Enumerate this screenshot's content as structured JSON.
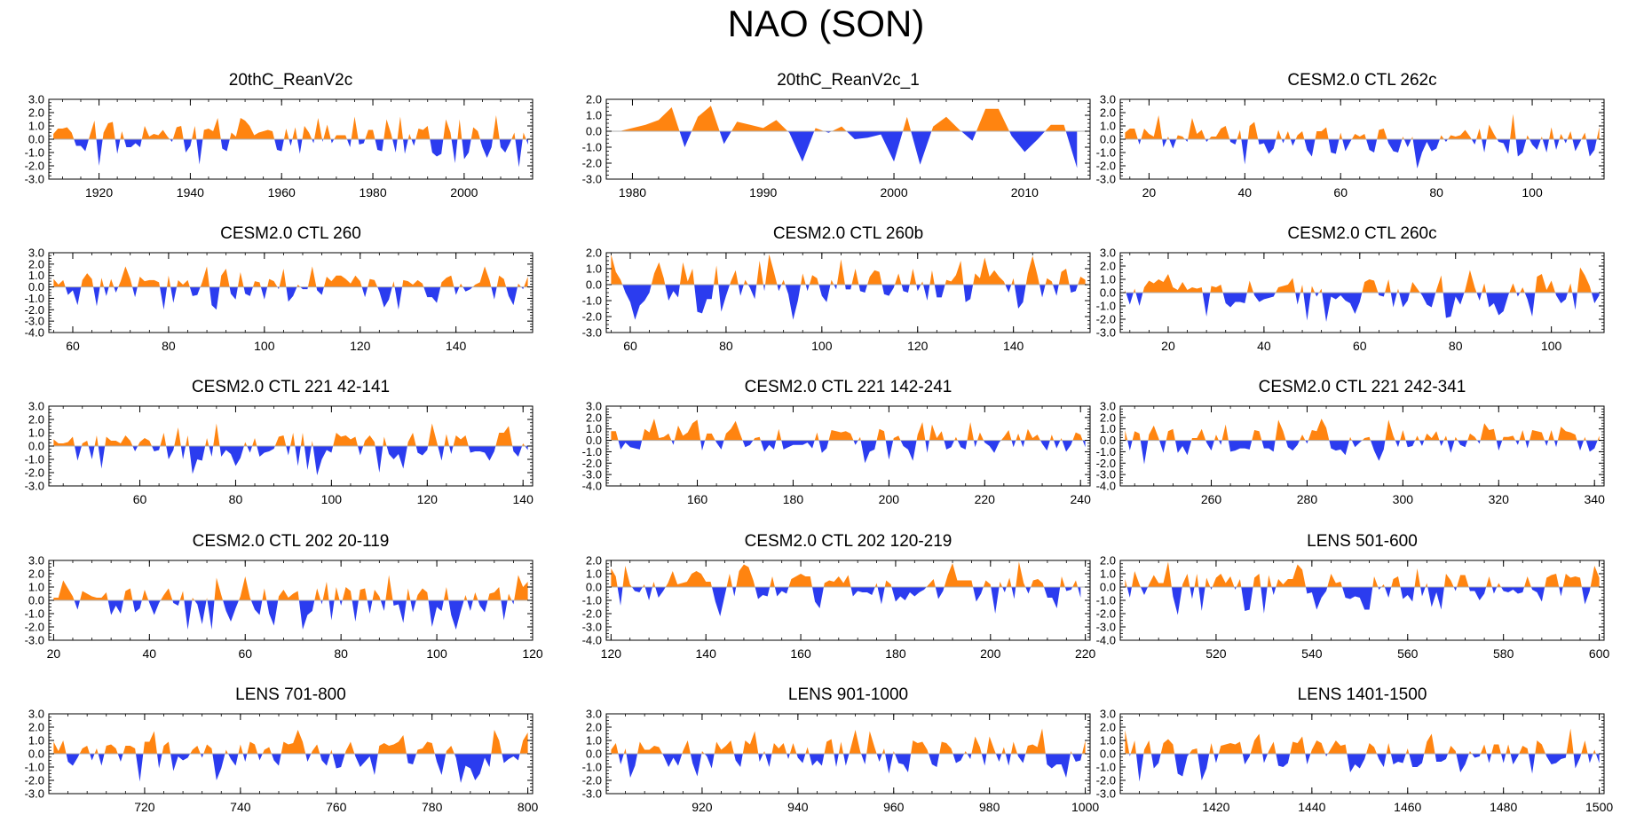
{
  "figure_title": "NAO (SON)",
  "colors": {
    "positive": "#ff8410",
    "negative": "#2b3cef",
    "axis": "#000000",
    "zero_line": "#b0b0b0"
  },
  "chart_data": [
    {
      "type": "area",
      "title": "20thC_ReanV2c",
      "x_start": 1910,
      "x_end": 2014,
      "xlim": [
        1909,
        2015
      ],
      "xticks": [
        1920,
        1940,
        1960,
        1980,
        2000
      ],
      "ylim": [
        -3.0,
        3.0
      ],
      "yticks": [
        -3.0,
        -2.0,
        -1.0,
        0.0,
        1.0,
        2.0,
        3.0
      ],
      "seed": 11
    },
    {
      "type": "area",
      "title": "20thC_ReanV2c_1",
      "xlim": [
        1978,
        2015
      ],
      "xticks": [
        1980,
        1990,
        2000,
        2010
      ],
      "ylim": [
        -3.0,
        2.0
      ],
      "yticks": [
        -3.0,
        -2.0,
        -1.0,
        0.0,
        1.0,
        2.0
      ],
      "x": [
        1979,
        1980,
        1981,
        1982,
        1983,
        1984,
        1985,
        1986,
        1987,
        1988,
        1989,
        1990,
        1991,
        1992,
        1993,
        1994,
        1995,
        1996,
        1997,
        1998,
        1999,
        2000,
        2001,
        2002,
        2003,
        2004,
        2005,
        2006,
        2007,
        2008,
        2009,
        2010,
        2011,
        2012,
        2013,
        2014
      ],
      "values": [
        0.0,
        0.2,
        0.4,
        0.7,
        1.5,
        -1.0,
        0.9,
        1.6,
        -0.8,
        0.6,
        0.4,
        0.2,
        0.7,
        -0.1,
        -1.9,
        0.2,
        -0.1,
        0.3,
        -0.5,
        -0.4,
        -0.2,
        -1.9,
        0.9,
        -2.1,
        0.3,
        0.9,
        0.1,
        -0.6,
        1.4,
        1.4,
        -0.3,
        -1.3,
        -0.5,
        0.4,
        0.4,
        -2.3
      ]
    },
    {
      "type": "area",
      "title": "CESM2.0 CTL 262c",
      "x_start": 15,
      "x_end": 114,
      "xlim": [
        14,
        115
      ],
      "xticks": [
        20,
        40,
        60,
        80,
        100
      ],
      "ylim": [
        -3.0,
        3.0
      ],
      "yticks": [
        -3.0,
        -2.0,
        -1.0,
        0.0,
        1.0,
        2.0,
        3.0
      ],
      "seed": 23
    },
    {
      "type": "area",
      "title": "CESM2.0 CTL 260",
      "x_start": 56,
      "x_end": 155,
      "xlim": [
        55,
        156
      ],
      "xticks": [
        60,
        80,
        100,
        120,
        140
      ],
      "ylim": [
        -4.0,
        3.0
      ],
      "yticks": [
        -4.0,
        -3.0,
        -2.0,
        -1.0,
        0.0,
        1.0,
        2.0,
        3.0
      ],
      "seed": 37
    },
    {
      "type": "area",
      "title": "CESM2.0 CTL 260b",
      "x_start": 56,
      "x_end": 155,
      "xlim": [
        55,
        156
      ],
      "xticks": [
        60,
        80,
        100,
        120,
        140
      ],
      "ylim": [
        -3.0,
        2.0
      ],
      "yticks": [
        -3.0,
        -2.0,
        -1.0,
        0.0,
        1.0,
        2.0
      ],
      "seed": 41
    },
    {
      "type": "area",
      "title": "CESM2.0 CTL 260c",
      "x_start": 11,
      "x_end": 110,
      "xlim": [
        10,
        111
      ],
      "xticks": [
        20,
        40,
        60,
        80,
        100
      ],
      "ylim": [
        -3.0,
        3.0
      ],
      "yticks": [
        -3.0,
        -2.0,
        -1.0,
        0.0,
        1.0,
        2.0,
        3.0
      ],
      "seed": 53
    },
    {
      "type": "area",
      "title": "CESM2.0 CTL 221 42-141",
      "x_start": 42,
      "x_end": 141,
      "xlim": [
        41,
        142
      ],
      "xticks": [
        60,
        80,
        100,
        120,
        140
      ],
      "ylim": [
        -3.0,
        3.0
      ],
      "yticks": [
        -3.0,
        -2.0,
        -1.0,
        0.0,
        1.0,
        2.0,
        3.0
      ],
      "seed": 67
    },
    {
      "type": "area",
      "title": "CESM2.0 CTL 221 142-241",
      "x_start": 142,
      "x_end": 241,
      "xlim": [
        141,
        242
      ],
      "xticks": [
        160,
        180,
        200,
        220,
        240
      ],
      "ylim": [
        -4.0,
        3.0
      ],
      "yticks": [
        -4.0,
        -3.0,
        -2.0,
        -1.0,
        0.0,
        1.0,
        2.0,
        3.0
      ],
      "seed": 71
    },
    {
      "type": "area",
      "title": "CESM2.0 CTL 221 242-341",
      "x_start": 242,
      "x_end": 341,
      "xlim": [
        241,
        342
      ],
      "xticks": [
        260,
        280,
        300,
        320,
        340
      ],
      "ylim": [
        -4.0,
        3.0
      ],
      "yticks": [
        -4.0,
        -3.0,
        -2.0,
        -1.0,
        0.0,
        1.0,
        2.0,
        3.0
      ],
      "seed": 83
    },
    {
      "type": "area",
      "title": "CESM2.0 CTL 202 20-119",
      "x_start": 20,
      "x_end": 119,
      "xlim": [
        19,
        120
      ],
      "xticks": [
        20,
        40,
        60,
        80,
        100,
        120
      ],
      "ylim": [
        -3.0,
        3.0
      ],
      "yticks": [
        -3.0,
        -2.0,
        -1.0,
        0.0,
        1.0,
        2.0,
        3.0
      ],
      "seed": 97
    },
    {
      "type": "area",
      "title": "CESM2.0 CTL 202 120-219",
      "x_start": 120,
      "x_end": 219,
      "xlim": [
        119,
        221
      ],
      "xticks": [
        120,
        140,
        160,
        180,
        200,
        220
      ],
      "ylim": [
        -4.0,
        2.0
      ],
      "yticks": [
        -4.0,
        -3.0,
        -2.0,
        -1.0,
        0.0,
        1.0,
        2.0
      ],
      "seed": 101
    },
    {
      "type": "area",
      "title": "LENS 501-600",
      "x_start": 501,
      "x_end": 600,
      "xlim": [
        500,
        601
      ],
      "xticks": [
        520,
        540,
        560,
        580,
        600
      ],
      "ylim": [
        -4.0,
        2.0
      ],
      "yticks": [
        -4.0,
        -3.0,
        -2.0,
        -1.0,
        0.0,
        1.0,
        2.0
      ],
      "seed": 113
    },
    {
      "type": "area",
      "title": "LENS 701-800",
      "x_start": 701,
      "x_end": 800,
      "xlim": [
        700,
        801
      ],
      "xticks": [
        720,
        740,
        760,
        780,
        800
      ],
      "ylim": [
        -3.0,
        3.0
      ],
      "yticks": [
        -3.0,
        -2.0,
        -1.0,
        0.0,
        1.0,
        2.0,
        3.0
      ],
      "seed": 127
    },
    {
      "type": "area",
      "title": "LENS 901-1000",
      "x_start": 901,
      "x_end": 1000,
      "xlim": [
        900,
        1001
      ],
      "xticks": [
        920,
        940,
        960,
        980,
        1000
      ],
      "ylim": [
        -3.0,
        3.0
      ],
      "yticks": [
        -3.0,
        -2.0,
        -1.0,
        0.0,
        1.0,
        2.0,
        3.0
      ],
      "seed": 131
    },
    {
      "type": "area",
      "title": "LENS 1401-1500",
      "x_start": 1401,
      "x_end": 1500,
      "xlim": [
        1400,
        1501
      ],
      "xticks": [
        1420,
        1440,
        1460,
        1480,
        1500
      ],
      "ylim": [
        -3.0,
        3.0
      ],
      "yticks": [
        -3.0,
        -2.0,
        -1.0,
        0.0,
        1.0,
        2.0,
        3.0
      ],
      "seed": 139
    }
  ]
}
